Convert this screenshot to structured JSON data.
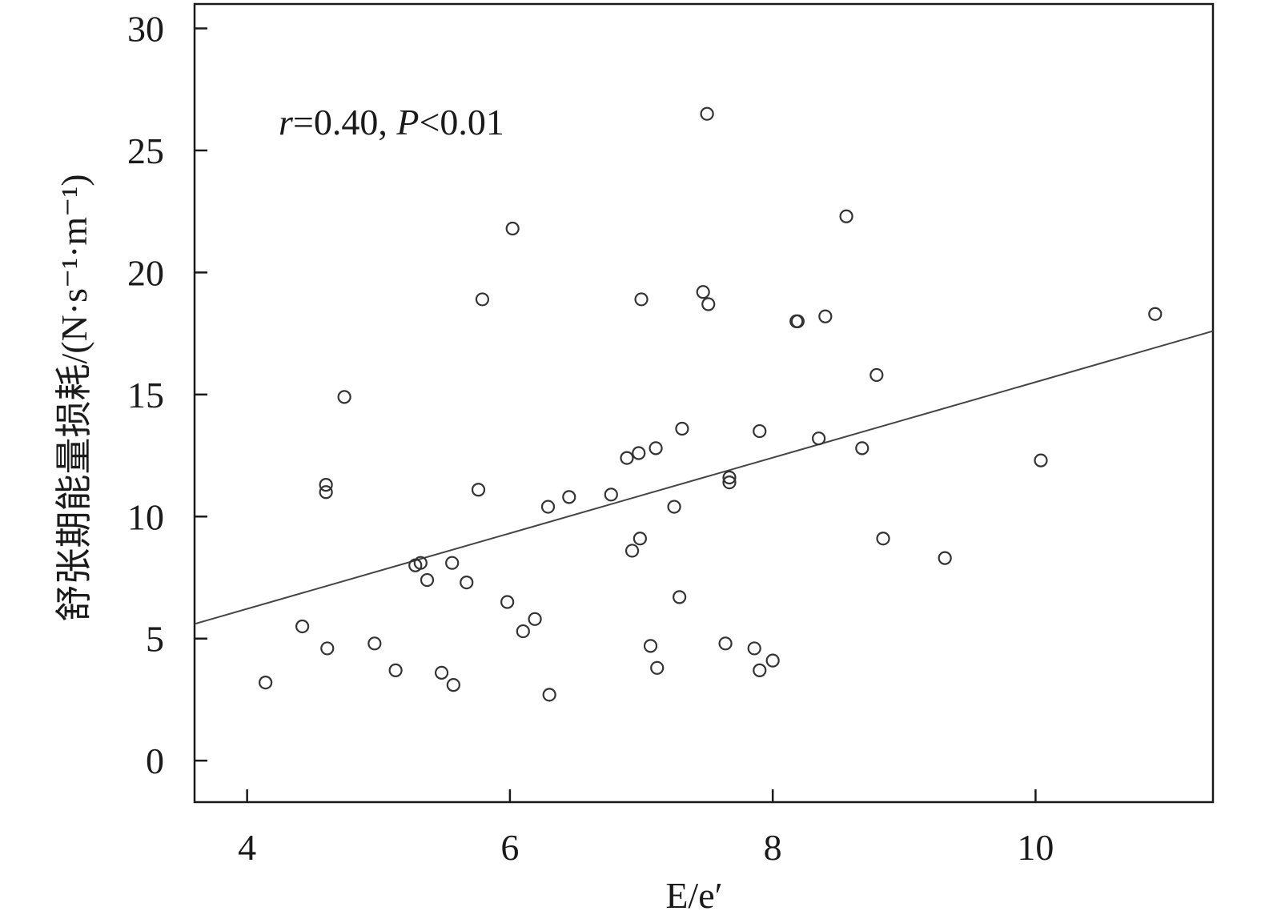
{
  "chart_data": {
    "type": "scatter",
    "title": "",
    "xlabel": "E/e′",
    "ylabel": "舒张期能量损耗/(N·s⁻¹·m⁻¹)",
    "xlim": [
      3.6,
      11.35
    ],
    "ylim": [
      -1.7,
      31.0
    ],
    "xticks": [
      4,
      6,
      8,
      10
    ],
    "yticks": [
      0,
      5,
      10,
      15,
      20,
      25,
      30
    ],
    "grid": false,
    "annotation": {
      "r_symbol": "r",
      "r_value": "=0.40, ",
      "p_symbol": "P",
      "p_value": "<0.01"
    },
    "fit_line": {
      "x": [
        3.6,
        11.35
      ],
      "y": [
        5.6,
        17.6
      ]
    },
    "points": [
      {
        "x": 4.14,
        "y": 3.2
      },
      {
        "x": 4.42,
        "y": 5.5
      },
      {
        "x": 4.6,
        "y": 11.3
      },
      {
        "x": 4.6,
        "y": 11.0
      },
      {
        "x": 4.61,
        "y": 4.6
      },
      {
        "x": 4.74,
        "y": 14.9
      },
      {
        "x": 4.97,
        "y": 4.8
      },
      {
        "x": 5.13,
        "y": 3.7
      },
      {
        "x": 5.28,
        "y": 8.0
      },
      {
        "x": 5.32,
        "y": 8.1
      },
      {
        "x": 5.37,
        "y": 7.4
      },
      {
        "x": 5.48,
        "y": 3.6
      },
      {
        "x": 5.56,
        "y": 8.1
      },
      {
        "x": 5.57,
        "y": 3.1
      },
      {
        "x": 5.67,
        "y": 7.3
      },
      {
        "x": 5.76,
        "y": 11.1
      },
      {
        "x": 5.79,
        "y": 18.9
      },
      {
        "x": 5.98,
        "y": 6.5
      },
      {
        "x": 6.02,
        "y": 21.8
      },
      {
        "x": 6.1,
        "y": 5.3
      },
      {
        "x": 6.19,
        "y": 5.8
      },
      {
        "x": 6.29,
        "y": 10.4
      },
      {
        "x": 6.3,
        "y": 2.7
      },
      {
        "x": 6.45,
        "y": 10.8
      },
      {
        "x": 6.77,
        "y": 10.9
      },
      {
        "x": 6.89,
        "y": 12.4
      },
      {
        "x": 6.93,
        "y": 8.6
      },
      {
        "x": 6.98,
        "y": 12.6
      },
      {
        "x": 6.99,
        "y": 9.1
      },
      {
        "x": 7.0,
        "y": 18.9
      },
      {
        "x": 7.07,
        "y": 4.7
      },
      {
        "x": 7.11,
        "y": 12.8
      },
      {
        "x": 7.12,
        "y": 3.8
      },
      {
        "x": 7.25,
        "y": 10.4
      },
      {
        "x": 7.29,
        "y": 6.7
      },
      {
        "x": 7.31,
        "y": 13.6
      },
      {
        "x": 7.47,
        "y": 19.2
      },
      {
        "x": 7.5,
        "y": 26.5
      },
      {
        "x": 7.51,
        "y": 18.7
      },
      {
        "x": 7.64,
        "y": 4.8
      },
      {
        "x": 7.67,
        "y": 11.6
      },
      {
        "x": 7.67,
        "y": 11.4
      },
      {
        "x": 7.86,
        "y": 4.6
      },
      {
        "x": 7.9,
        "y": 13.5
      },
      {
        "x": 7.9,
        "y": 3.7
      },
      {
        "x": 8.0,
        "y": 4.1
      },
      {
        "x": 8.18,
        "y": 18.0
      },
      {
        "x": 8.19,
        "y": 18.0
      },
      {
        "x": 8.35,
        "y": 13.2
      },
      {
        "x": 8.4,
        "y": 18.2
      },
      {
        "x": 8.56,
        "y": 22.3
      },
      {
        "x": 8.68,
        "y": 12.8
      },
      {
        "x": 8.79,
        "y": 15.8
      },
      {
        "x": 8.84,
        "y": 9.1
      },
      {
        "x": 9.31,
        "y": 8.3
      },
      {
        "x": 10.04,
        "y": 12.3
      },
      {
        "x": 10.91,
        "y": 18.3
      }
    ]
  }
}
